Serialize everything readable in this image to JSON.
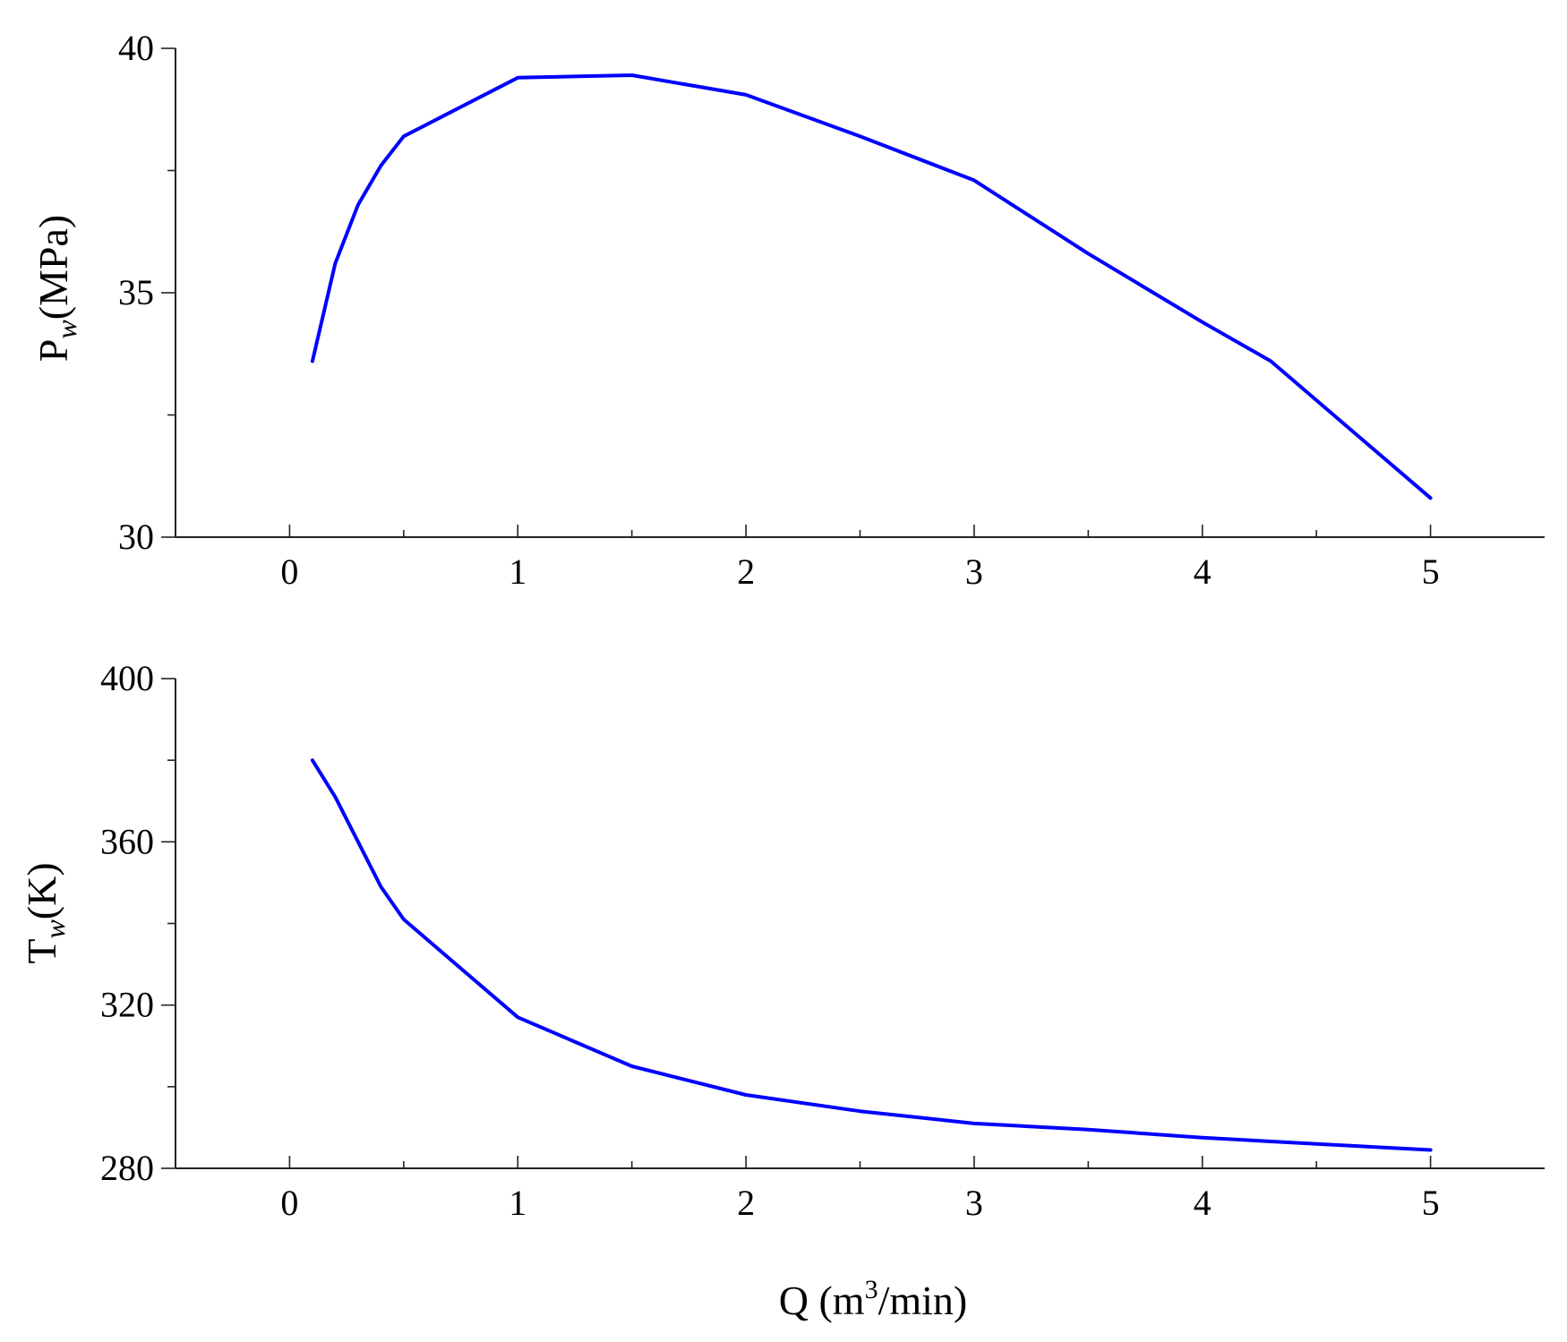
{
  "colors": {
    "series_line": "#0000ff",
    "axis": "#222222"
  },
  "chart_data": [
    {
      "type": "line",
      "ylabel_main": "P",
      "ylabel_sub": "w",
      "ylabel_rest": "(MPa)",
      "xlim": [
        -0.5,
        5.5
      ],
      "ylim": [
        30,
        40
      ],
      "xticks": [
        "0",
        "1",
        "2",
        "3",
        "4",
        "5"
      ],
      "yticks": [
        "30",
        "35",
        "40"
      ],
      "grid": false,
      "x": [
        0.1,
        0.2,
        0.3,
        0.4,
        0.5,
        1.0,
        1.5,
        2.0,
        2.5,
        3.0,
        3.5,
        4.0,
        4.3,
        5.0
      ],
      "y": [
        33.6,
        35.6,
        36.8,
        37.6,
        38.2,
        39.4,
        39.45,
        39.05,
        38.2,
        37.3,
        35.8,
        34.4,
        33.6,
        30.8
      ]
    },
    {
      "type": "line",
      "ylabel_main": "T",
      "ylabel_sub": "w",
      "ylabel_rest": "(K)",
      "xlabel_pre": "Q (m",
      "xlabel_sup": "3",
      "xlabel_post": "/min)",
      "xlim": [
        -0.5,
        5.5
      ],
      "ylim": [
        280,
        400
      ],
      "xticks": [
        "0",
        "1",
        "2",
        "3",
        "4",
        "5"
      ],
      "yticks": [
        "280",
        "320",
        "360",
        "400"
      ],
      "grid": false,
      "x": [
        0.1,
        0.2,
        0.3,
        0.4,
        0.5,
        1.0,
        1.5,
        2.0,
        2.5,
        3.0,
        3.5,
        4.0,
        4.5,
        5.0
      ],
      "y": [
        380,
        371,
        360,
        349,
        341,
        317,
        305,
        298,
        294,
        291,
        289.5,
        287.5,
        286,
        284.5
      ]
    }
  ]
}
